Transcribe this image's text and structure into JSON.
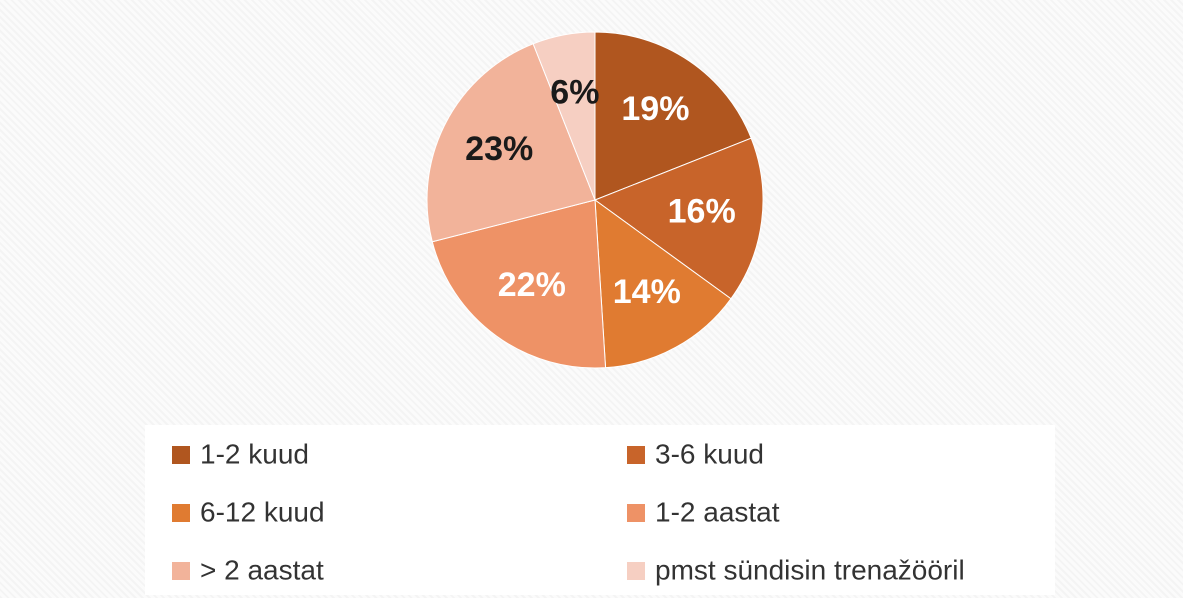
{
  "chart_data": {
    "type": "pie",
    "categories": [
      "1-2 kuud",
      "3-6 kuud",
      "6-12 kuud",
      "1-2 aastat",
      "> 2 aastat",
      "pmst sündisin trenažööril"
    ],
    "values": [
      19,
      16,
      14,
      22,
      23,
      6
    ],
    "value_labels": [
      "19%",
      "16%",
      "14%",
      "22%",
      "23%",
      "6%"
    ],
    "colors": [
      "#b0561f",
      "#c8642a",
      "#e07b31",
      "#ee9266",
      "#f2b39a",
      "#f6cfc2"
    ],
    "legend": "bottom"
  }
}
